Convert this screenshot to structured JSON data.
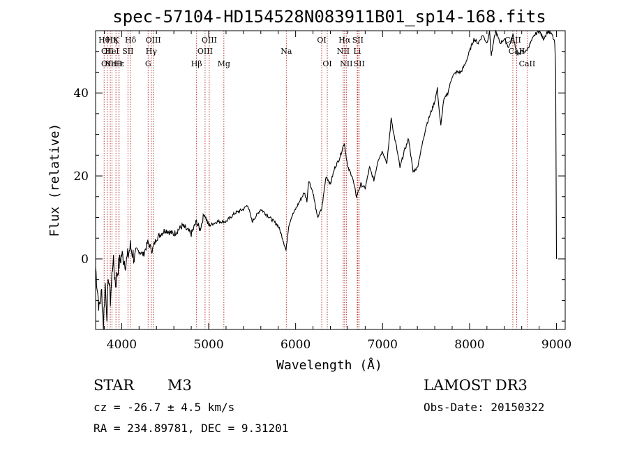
{
  "chart_data": {
    "type": "line",
    "title": "spec-57104-HD154528N083911B01_sp14-168.fits",
    "xlabel": "Wavelength (Å)",
    "ylabel": "Flux (relative)",
    "xlim": [
      3700,
      9100
    ],
    "ylim": [
      -17,
      55
    ],
    "x_ticks": [
      4000,
      5000,
      6000,
      7000,
      8000,
      9000
    ],
    "y_ticks": [
      0,
      20,
      40
    ],
    "series": [
      {
        "name": "flux",
        "x": [
          3700,
          3740,
          3770,
          3790,
          3810,
          3830,
          3850,
          3870,
          3900,
          3930,
          3960,
          4000,
          4050,
          4100,
          4150,
          4200,
          4250,
          4300,
          4350,
          4400,
          4500,
          4600,
          4700,
          4800,
          4860,
          4900,
          4950,
          5000,
          5100,
          5200,
          5300,
          5400,
          5450,
          5500,
          5600,
          5700,
          5800,
          5850,
          5890,
          5920,
          5950,
          6000,
          6050,
          6100,
          6130,
          6150,
          6200,
          6250,
          6300,
          6350,
          6400,
          6450,
          6500,
          6560,
          6600,
          6650,
          6700,
          6750,
          6800,
          6850,
          6900,
          6950,
          7000,
          7050,
          7100,
          7130,
          7160,
          7200,
          7250,
          7300,
          7350,
          7400,
          7450,
          7500,
          7550,
          7600,
          7630,
          7650,
          7670,
          7700,
          7750,
          7800,
          7850,
          7900,
          7950,
          8000,
          8050,
          8100,
          8150,
          8200,
          8230,
          8250,
          8300,
          8350,
          8400,
          8450,
          8500,
          8550,
          8600,
          8650,
          8700,
          8750,
          8800,
          8850,
          8900,
          8950,
          8980,
          8990,
          9000
        ],
        "y": [
          -2,
          -12,
          -8,
          -16,
          -6,
          -13,
          -4,
          -10,
          0,
          -6,
          -2,
          1,
          -1,
          3,
          0,
          2,
          1,
          4,
          2,
          5,
          7,
          6,
          8,
          6,
          9,
          7,
          11,
          8,
          9,
          9,
          11,
          12,
          13,
          9,
          12,
          10,
          8,
          5,
          2,
          8,
          10,
          12,
          14,
          16,
          14,
          19,
          16,
          10,
          12,
          20,
          18,
          22,
          24,
          28,
          22,
          20,
          15,
          18,
          17,
          22,
          19,
          24,
          26,
          23,
          34,
          30,
          27,
          22,
          26,
          29,
          21,
          22,
          27,
          32,
          35,
          38,
          41,
          36,
          32,
          38,
          40,
          44,
          45,
          45,
          47,
          50,
          53,
          52,
          54,
          52,
          55,
          49,
          55,
          52,
          53,
          51,
          54,
          49,
          50,
          50,
          52,
          54,
          55,
          53,
          55,
          54,
          52,
          45,
          0
        ]
      }
    ],
    "line_ids": [
      {
        "x": 3798,
        "row": 1,
        "label": "Hθ"
      },
      {
        "x": 3835,
        "row": 2,
        "label": "OII"
      },
      {
        "x": 3835,
        "row": 3,
        "label": "OII"
      },
      {
        "x": 3889,
        "row": 1,
        "label": "Hη"
      },
      {
        "x": 3889,
        "row": 2,
        "label": "HeI"
      },
      {
        "x": 3869,
        "row": 3,
        "label": "Ne"
      },
      {
        "x": 3934,
        "row": 1,
        "label": "K"
      },
      {
        "x": 3970,
        "row": 3,
        "label": "Hε"
      },
      {
        "x": 3968,
        "row": 3,
        "label": "H"
      },
      {
        "x": 4072,
        "row": 2,
        "label": "SII"
      },
      {
        "x": 4102,
        "row": 1,
        "label": "Hδ"
      },
      {
        "x": 4304,
        "row": 3,
        "label": "G"
      },
      {
        "x": 4341,
        "row": 2,
        "label": "Hγ"
      },
      {
        "x": 4363,
        "row": 1,
        "label": "OIII"
      },
      {
        "x": 4861,
        "row": 3,
        "label": "Hβ"
      },
      {
        "x": 4959,
        "row": 2,
        "label": "OIII"
      },
      {
        "x": 5007,
        "row": 1,
        "label": "OIII"
      },
      {
        "x": 5175,
        "row": 3,
        "label": "Mg"
      },
      {
        "x": 5893,
        "row": 2,
        "label": "Na"
      },
      {
        "x": 6300,
        "row": 1,
        "label": "OI"
      },
      {
        "x": 6364,
        "row": 3,
        "label": "OI"
      },
      {
        "x": 6548,
        "row": 2,
        "label": "NII"
      },
      {
        "x": 6563,
        "row": 1,
        "label": "Hα"
      },
      {
        "x": 6583,
        "row": 3,
        "label": "NII"
      },
      {
        "x": 6708,
        "row": 2,
        "label": "Li"
      },
      {
        "x": 6716,
        "row": 1,
        "label": "SII"
      },
      {
        "x": 6731,
        "row": 3,
        "label": "SII"
      },
      {
        "x": 8498,
        "row": 1,
        "label": "CaII"
      },
      {
        "x": 8542,
        "row": 2,
        "label": "CaII"
      },
      {
        "x": 8662,
        "row": 3,
        "label": "CaII"
      }
    ]
  },
  "info": {
    "class": "STAR",
    "subclass": "M3",
    "survey": "LAMOST DR3",
    "cz": "cz = -26.7 ± 4.5 km/s",
    "obs_date": "Obs-Date: 20150322",
    "coords": "RA = 234.89781, DEC =   9.31201"
  }
}
